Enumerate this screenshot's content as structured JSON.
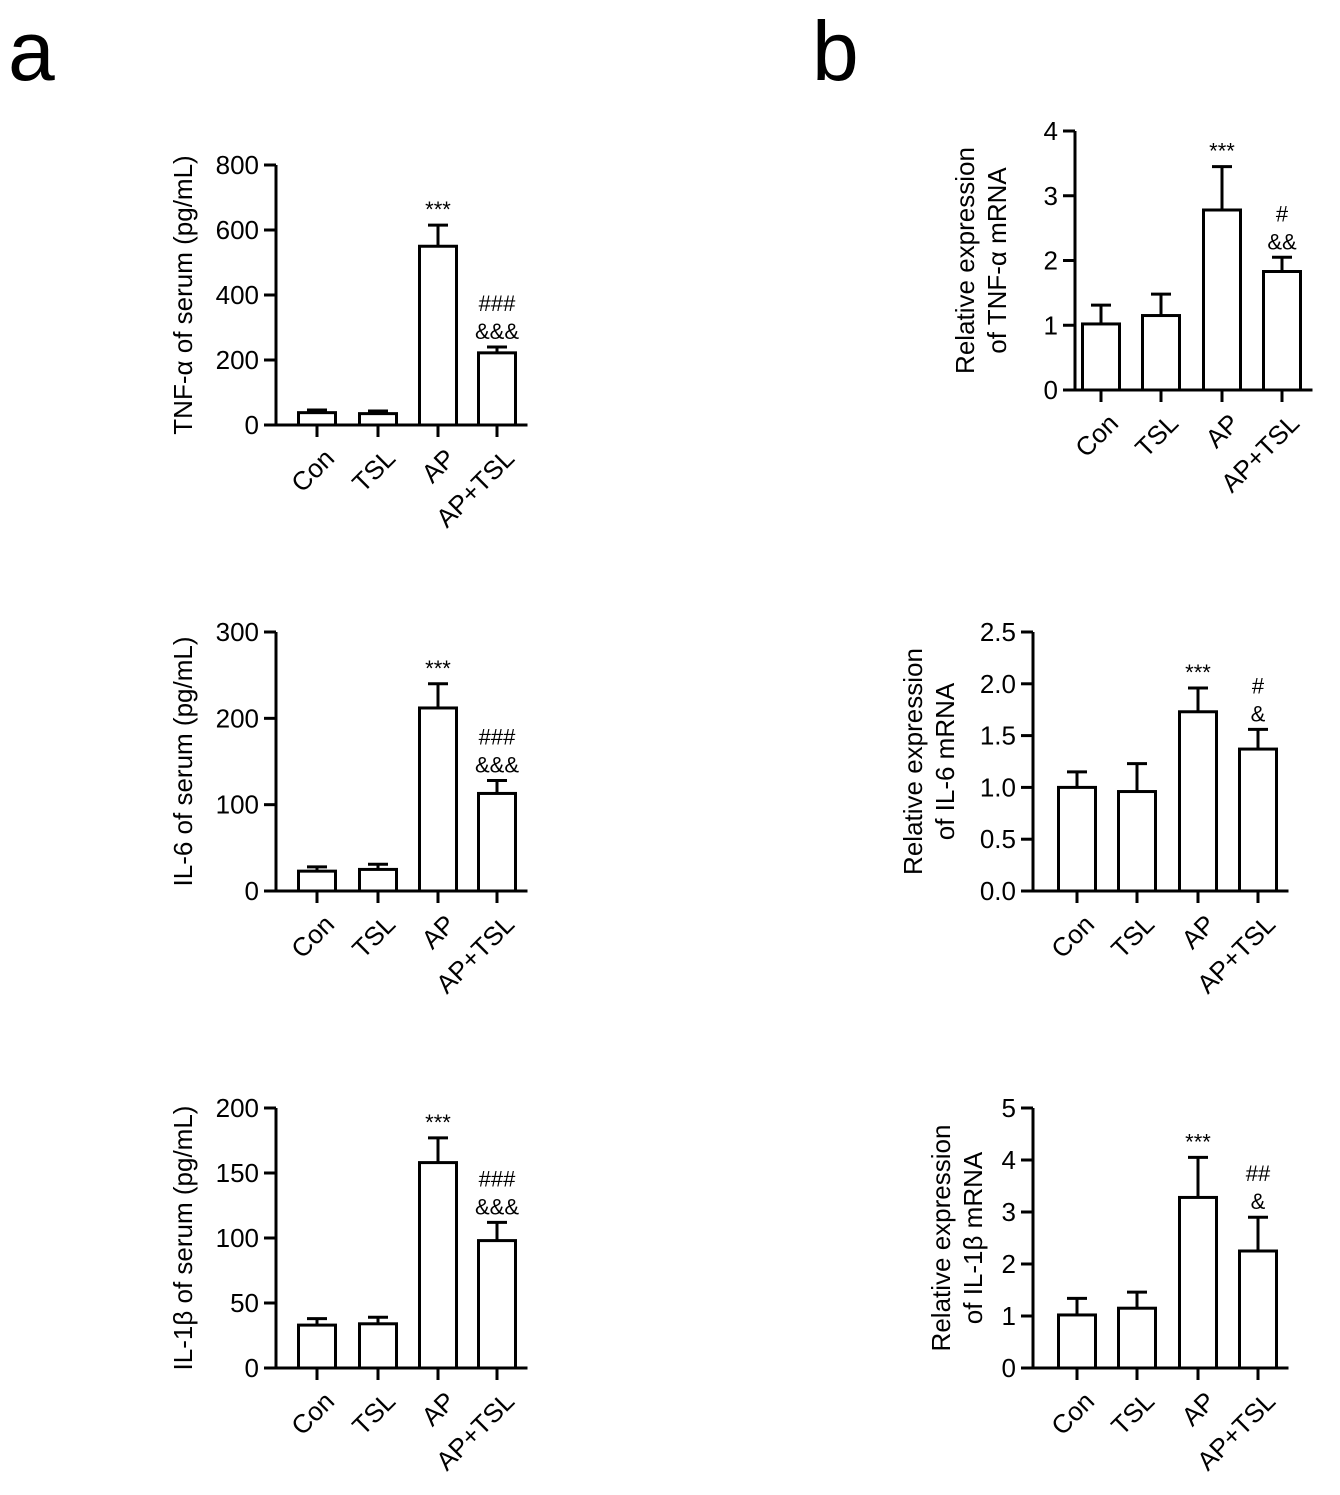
{
  "panel_labels": [
    "a",
    "b"
  ],
  "chart_data": [
    {
      "type": "bar",
      "panel": "a",
      "ylabel": "TNF-α of serum (pg/mL)",
      "categories": [
        "Con",
        "TSL",
        "AP",
        "AP+TSL"
      ],
      "values": [
        38,
        35,
        550,
        222
      ],
      "errors": [
        8,
        8,
        65,
        18
      ],
      "annotations": [
        [],
        [],
        [
          "***"
        ],
        [
          "###",
          "&&&"
        ]
      ],
      "ylim": [
        0,
        800
      ],
      "yticks": [
        "0",
        "200",
        "400",
        "600",
        "800"
      ]
    },
    {
      "type": "bar",
      "panel": "a",
      "ylabel": "IL-6 of serum (pg/mL)",
      "categories": [
        "Con",
        "TSL",
        "AP",
        "AP+TSL"
      ],
      "values": [
        23,
        25,
        212,
        113
      ],
      "errors": [
        5,
        6,
        28,
        15
      ],
      "annotations": [
        [],
        [],
        [
          "***"
        ],
        [
          "###",
          "&&&"
        ]
      ],
      "ylim": [
        0,
        300
      ],
      "yticks": [
        "0",
        "100",
        "200",
        "300"
      ]
    },
    {
      "type": "bar",
      "panel": "a",
      "ylabel": "IL-1β of serum (pg/mL)",
      "categories": [
        "Con",
        "TSL",
        "AP",
        "AP+TSL"
      ],
      "values": [
        33,
        34,
        158,
        98
      ],
      "errors": [
        5,
        5,
        19,
        14
      ],
      "annotations": [
        [],
        [],
        [
          "***"
        ],
        [
          "###",
          "&&&"
        ]
      ],
      "ylim": [
        0,
        200
      ],
      "yticks": [
        "0",
        "50",
        "100",
        "150",
        "200"
      ]
    },
    {
      "type": "bar",
      "panel": "b",
      "ylabel": [
        "Relative expression",
        "of TNF-α mRNA"
      ],
      "categories": [
        "Con",
        "TSL",
        "AP",
        "AP+TSL"
      ],
      "values": [
        1.02,
        1.15,
        2.78,
        1.83
      ],
      "errors": [
        0.29,
        0.33,
        0.67,
        0.22
      ],
      "annotations": [
        [],
        [],
        [
          "***"
        ],
        [
          "#",
          "&&"
        ]
      ],
      "ylim": [
        0,
        4
      ],
      "yticks": [
        "0",
        "1",
        "2",
        "3",
        "4"
      ]
    },
    {
      "type": "bar",
      "panel": "b",
      "ylabel": [
        "Relative expression",
        "of IL-6 mRNA"
      ],
      "categories": [
        "Con",
        "TSL",
        "AP",
        "AP+TSL"
      ],
      "values": [
        1.0,
        0.96,
        1.73,
        1.37
      ],
      "errors": [
        0.15,
        0.27,
        0.23,
        0.19
      ],
      "annotations": [
        [],
        [],
        [
          "***"
        ],
        [
          "#",
          "&"
        ]
      ],
      "ylim": [
        0,
        2.5
      ],
      "yticks": [
        "0.0",
        "0.5",
        "1.0",
        "1.5",
        "2.0",
        "2.5"
      ]
    },
    {
      "type": "bar",
      "panel": "b",
      "ylabel": [
        "Relative expression",
        "of IL-1β mRNA"
      ],
      "categories": [
        "Con",
        "TSL",
        "AP",
        "AP+TSL"
      ],
      "values": [
        1.02,
        1.15,
        3.28,
        2.25
      ],
      "errors": [
        0.32,
        0.31,
        0.77,
        0.65
      ],
      "annotations": [
        [],
        [],
        [
          "***"
        ],
        [
          "##",
          "&"
        ]
      ],
      "ylim": [
        0,
        5
      ],
      "yticks": [
        "0",
        "1",
        "2",
        "3",
        "4",
        "5"
      ]
    }
  ]
}
